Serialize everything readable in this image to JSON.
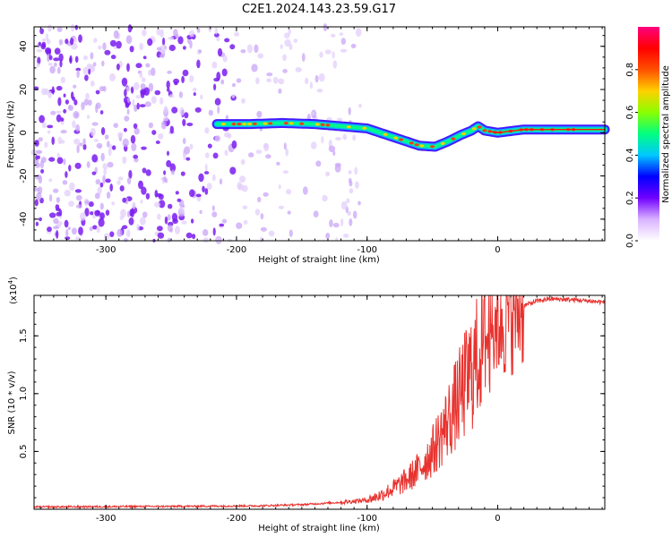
{
  "title": "C2E1.2024.143.23.59.G17",
  "chart_data": [
    {
      "type": "heatmap",
      "xlabel": "Height of straight line (km)",
      "ylabel": "Frequency (Hz)",
      "xlim": [
        -355,
        82
      ],
      "ylim": [
        -50,
        49
      ],
      "xticks": [
        -300,
        -200,
        -100,
        0
      ],
      "yticks": [
        -40,
        -20,
        0,
        20,
        40
      ],
      "colorbar": {
        "label": "Normalized spectral amplitude",
        "range": [
          0,
          1
        ],
        "ticks": [
          "0.0",
          "0.2",
          "0.4",
          "0.6",
          "0.8"
        ],
        "colormap": [
          "#ffffff",
          "#d9b3ff",
          "#7000ff",
          "#0000ff",
          "#00c8ff",
          "#00ff80",
          "#8aff00",
          "#ffd000",
          "#ff5000",
          "#ff0000",
          "#ff007f"
        ]
      },
      "ridge": {
        "x": [
          -215,
          -190,
          -165,
          -140,
          -120,
          -100,
          -90,
          -75,
          -60,
          -48,
          -38,
          -28,
          -20,
          -15,
          -10,
          -5,
          0,
          20,
          50,
          82
        ],
        "y": [
          4,
          4,
          4.5,
          4,
          3,
          2,
          0,
          -3,
          -6,
          -6.5,
          -4,
          -1,
          1,
          3,
          1,
          0.5,
          0,
          1.5,
          1.5,
          1.5
        ]
      }
    },
    {
      "type": "line",
      "xlabel": "Height of straight line (km)",
      "ylabel": "SNR (10 * v/v)",
      "exponent_label": "(x10",
      "exponent_sup": "4",
      "xlim": [
        -355,
        82
      ],
      "ylim": [
        0,
        1.85
      ],
      "xticks": [
        -300,
        -200,
        -100,
        0
      ],
      "yticks": [
        "0.5",
        "1.0",
        "1.5"
      ],
      "ytick_values": [
        0.5,
        1.0,
        1.5
      ],
      "color": "#e8322e",
      "envelope": {
        "x": [
          -355,
          -250,
          -180,
          -150,
          -120,
          -100,
          -90,
          -80,
          -70,
          -60,
          -50,
          -40,
          -30,
          -20,
          -10,
          -5,
          0,
          10,
          20,
          30,
          40,
          60,
          82
        ],
        "y": [
          0.02,
          0.025,
          0.03,
          0.04,
          0.06,
          0.08,
          0.12,
          0.18,
          0.25,
          0.35,
          0.5,
          0.72,
          0.95,
          1.2,
          1.45,
          1.55,
          1.62,
          1.7,
          1.76,
          1.8,
          1.82,
          1.81,
          1.79
        ]
      }
    }
  ]
}
